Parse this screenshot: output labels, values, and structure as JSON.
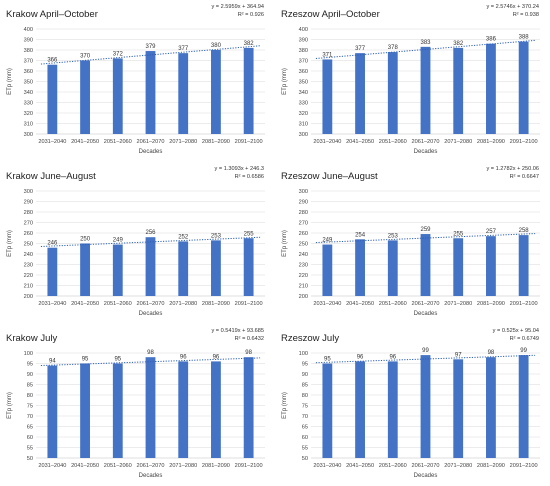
{
  "colors": {
    "bar": "#4472C4",
    "trend": "#2E5FB8",
    "grid": "#D9D9D9",
    "axis": "#BFBFBF"
  },
  "chart_data": [
    {
      "type": "bar",
      "title": "Krakow April–October",
      "equation": "y = 2.5959x + 364.94",
      "r2": "R² = 0.926",
      "xlabel": "Decades",
      "ylabel": "ETp (mm)",
      "categories": [
        "2031–2040",
        "2041–2050",
        "2051–2060",
        "2061–2070",
        "2071–2080",
        "2081–2090",
        "2091–2100"
      ],
      "values": [
        366,
        370,
        372,
        379,
        377,
        380,
        382
      ],
      "ylim": [
        300,
        400
      ],
      "yticks": [
        300,
        310,
        320,
        330,
        340,
        350,
        360,
        370,
        380,
        390,
        400
      ],
      "trend": {
        "slope": 2.5959,
        "intercept": 364.94
      }
    },
    {
      "type": "bar",
      "title": "Rzeszow April–October",
      "equation": "y = 2.5746x + 370.24",
      "r2": "R² = 0.938",
      "xlabel": "Decades",
      "ylabel": "ETp (mm)",
      "categories": [
        "2031–2040",
        "2041–2050",
        "2051–2060",
        "2061–2070",
        "2071–2080",
        "2081–2090",
        "2091–2100"
      ],
      "values": [
        371,
        377,
        378,
        383,
        382,
        386,
        388
      ],
      "ylim": [
        300,
        400
      ],
      "yticks": [
        300,
        310,
        320,
        330,
        340,
        350,
        360,
        370,
        380,
        390,
        400
      ],
      "trend": {
        "slope": 2.5746,
        "intercept": 370.24
      }
    },
    {
      "type": "bar",
      "title": "Krakow June–August",
      "equation": "y = 1.3093x + 246.3",
      "r2": "R² = 0.6586",
      "xlabel": "Decades",
      "ylabel": "ETp (mm)",
      "categories": [
        "2031–2040",
        "2041–2050",
        "2051–2060",
        "2061–2070",
        "2071–2080",
        "2081–2090",
        "2091–2100"
      ],
      "values": [
        246,
        250,
        249,
        256,
        252,
        253,
        255
      ],
      "ylim": [
        200,
        300
      ],
      "yticks": [
        200,
        210,
        220,
        230,
        240,
        250,
        260,
        270,
        280,
        290,
        300
      ],
      "trend": {
        "slope": 1.3093,
        "intercept": 246.3
      }
    },
    {
      "type": "bar",
      "title": "Rzeszow June–August",
      "equation": "y = 1.2782x + 250.06",
      "r2": "R² = 0.6647",
      "xlabel": "Decades",
      "ylabel": "ETp (mm)",
      "categories": [
        "2031–2040",
        "2041–2050",
        "2051–2060",
        "2061–2070",
        "2071–2080",
        "2081–2090",
        "2091–2100"
      ],
      "values": [
        249,
        254,
        253,
        259,
        255,
        257,
        258
      ],
      "ylim": [
        200,
        300
      ],
      "yticks": [
        200,
        210,
        220,
        230,
        240,
        250,
        260,
        270,
        280,
        290,
        300
      ],
      "trend": {
        "slope": 1.2782,
        "intercept": 250.06
      }
    },
    {
      "type": "bar",
      "title": "Krakow July",
      "equation": "y = 0.5419x + 93.685",
      "r2": "R² = 0.6432",
      "xlabel": "Decades",
      "ylabel": "ETp (mm)",
      "categories": [
        "2031–2040",
        "2041–2050",
        "2051–2060",
        "2061–2070",
        "2071–2080",
        "2081–2090",
        "2091–2100"
      ],
      "values": [
        94,
        95,
        95,
        98,
        96,
        96,
        98
      ],
      "ylim": [
        50,
        100
      ],
      "yticks": [
        50,
        55,
        60,
        65,
        70,
        75,
        80,
        85,
        90,
        95,
        100
      ],
      "trend": {
        "slope": 0.5419,
        "intercept": 93.685
      }
    },
    {
      "type": "bar",
      "title": "Rzeszow July",
      "equation": "y = 0.525x + 95.04",
      "r2": "R² = 0.6749",
      "xlabel": "Decades",
      "ylabel": "ETp (mm)",
      "categories": [
        "2031–2040",
        "2041–2050",
        "2051–2060",
        "2061–2070",
        "2071–2080",
        "2081–2090",
        "2091–2100"
      ],
      "values": [
        95,
        96,
        96,
        99,
        97,
        98,
        99
      ],
      "ylim": [
        50,
        100
      ],
      "yticks": [
        50,
        55,
        60,
        65,
        70,
        75,
        80,
        85,
        90,
        95,
        100
      ],
      "trend": {
        "slope": 0.525,
        "intercept": 95.04
      }
    }
  ]
}
